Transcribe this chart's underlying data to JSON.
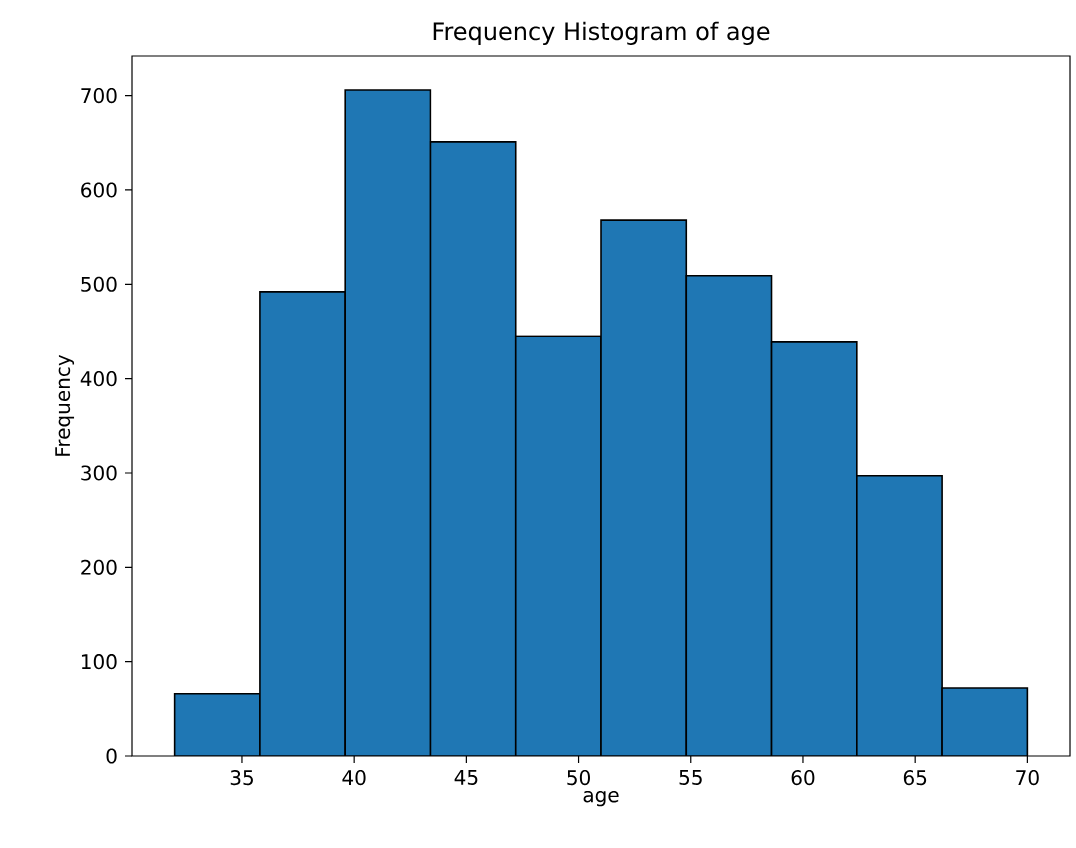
{
  "chart_data": {
    "type": "histogram",
    "title": "Frequency Histogram of age",
    "xlabel": "age",
    "ylabel": "Frequency",
    "bins": [
      32,
      35.8,
      39.6,
      43.4,
      47.2,
      51,
      54.8,
      58.6,
      62.4,
      66.2,
      70
    ],
    "values": [
      66,
      492,
      706,
      651,
      445,
      568,
      509,
      439,
      297,
      72
    ],
    "color": "#1f77b4",
    "xlim": [
      30.1,
      71.9
    ],
    "ylim": [
      0,
      742
    ],
    "xticks": [
      35,
      40,
      45,
      50,
      55,
      60,
      65,
      70
    ],
    "yticks": [
      0,
      100,
      200,
      300,
      400,
      500,
      600,
      700
    ]
  }
}
